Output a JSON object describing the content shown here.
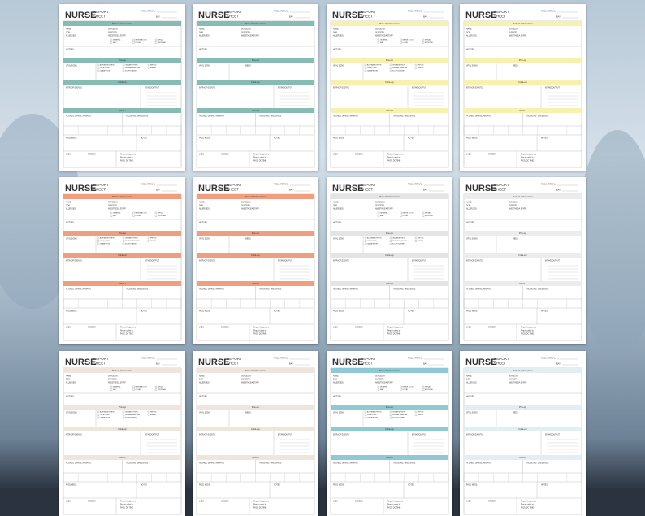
{
  "template": {
    "brand": "NURSE",
    "report": "REPORT",
    "sheet": "SHEET",
    "pacu_arrival": "PACU ARRIVAL:",
    "bay": "BAY:",
    "patient_info": "Patient Information",
    "name": "NAME:",
    "dob": "DOB:",
    "allergies": "ALLERGIES:",
    "surgeon": "SURGEON:",
    "surgery": "SURGERY:",
    "anesthesia_staff": "ANESTHESIA STAFF:",
    "anesthesia_types": [
      "GENERAL",
      "NERVE BLOCK",
      "SPINAL",
      "MAC",
      "LOCAL",
      "EPIDURAL"
    ],
    "history": "HISTORY:",
    "preop": "Pre-op",
    "vital_signs": "VITAL SIGNS",
    "meds": "MEDS:",
    "preop_meds": [
      "ACETAMINOPHEN",
      "CELECOXIB",
      "GABAPENTIN",
      "ONDANSETRON",
      "DEXAMETHASONE",
      "SCOPOLAMINE",
      "PEPCID",
      "EMEND"
    ],
    "intraop": "Intra-op",
    "intraop_events": "INTRAOP EVENTS:",
    "intake_output": "INTAKE/OUTPUT",
    "pacu": "PACU",
    "lines": "IV, LINES, DRAINS, AIRWAYS:",
    "incisions": "INCISIONS / DRESSINGS:",
    "pacu_meds": "PACU MEDS:",
    "notes": "NOTES",
    "labs": "LABS",
    "orders": "ORDERS",
    "report_assignment": "Report Assignment",
    "report_called": "Report called to:",
    "dc_time": "PACU DC TIME:"
  },
  "sheets": [
    {
      "color": "#86bcb2",
      "layout": "full"
    },
    {
      "color": "#86bcb2",
      "layout": "simple"
    },
    {
      "color": "#f7f1b0",
      "layout": "full"
    },
    {
      "color": "#f7f1b0",
      "layout": "simple"
    },
    {
      "color": "#ef9f7f",
      "layout": "full"
    },
    {
      "color": "#ef9f7f",
      "layout": "simple"
    },
    {
      "color": "#e4e4e4",
      "layout": "full"
    },
    {
      "color": "#ececec",
      "layout": "simple"
    },
    {
      "color": "#eee6dc",
      "layout": "full"
    },
    {
      "color": "#eee6dc",
      "layout": "simple"
    },
    {
      "color": "#8ecad3",
      "layout": "full"
    },
    {
      "color": "#e2eef2",
      "layout": "simple"
    }
  ]
}
